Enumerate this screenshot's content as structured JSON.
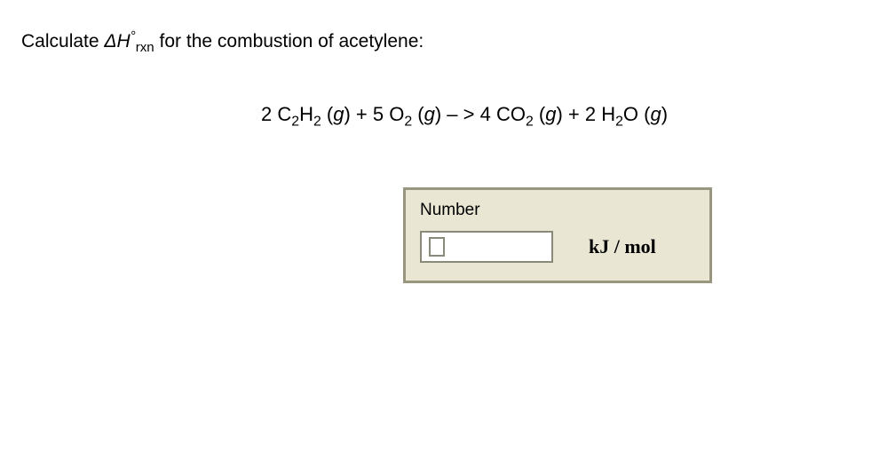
{
  "prompt": {
    "prefix": "Calculate ",
    "delta": "ΔH",
    "degree": "°",
    "subscript": "rxn",
    "suffix": " for the combustion of acetylene:"
  },
  "equation": {
    "parts": [
      {
        "t": "2 C"
      },
      {
        "sub": "2"
      },
      {
        "t": "H"
      },
      {
        "sub": "2"
      },
      {
        "t": " ("
      },
      {
        "i": "g"
      },
      {
        "t": ") + 5 O"
      },
      {
        "sub": "2"
      },
      {
        "t": " ("
      },
      {
        "i": "g"
      },
      {
        "t": ") – > 4 CO"
      },
      {
        "sub": "2"
      },
      {
        "t": " ("
      },
      {
        "i": "g"
      },
      {
        "t": ") + 2 H"
      },
      {
        "sub": "2"
      },
      {
        "t": "O ("
      },
      {
        "i": "g"
      },
      {
        "t": ")"
      }
    ]
  },
  "answer": {
    "label": "Number",
    "value": "",
    "unit": "kJ / mol"
  },
  "colors": {
    "box_bg": "#e9e7d4",
    "box_border": "#999680",
    "input_border": "#8a8a7a",
    "text": "#000000",
    "page_bg": "#ffffff"
  }
}
